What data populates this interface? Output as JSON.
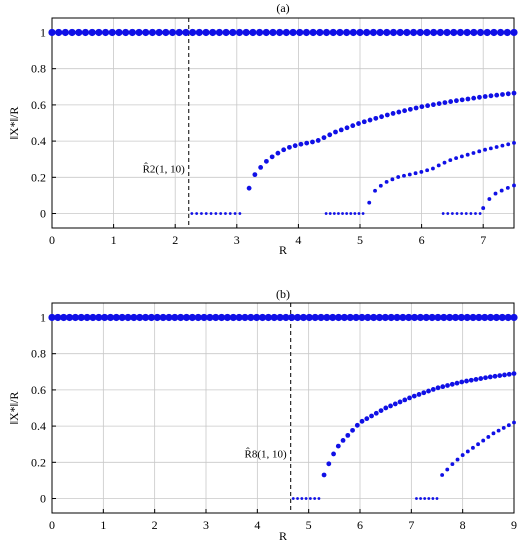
{
  "chart_data": [
    {
      "type": "scatter",
      "title": "(a)",
      "xlabel": "R",
      "ylabel": "‖X*‖/R",
      "xlim": [
        0,
        7.5
      ],
      "ylim": [
        -0.08,
        1.08
      ],
      "xticks": [
        0,
        1,
        2,
        3,
        4,
        5,
        6,
        7
      ],
      "yticks": [
        0,
        0.2,
        0.4,
        0.6,
        0.8,
        1
      ],
      "grid": true,
      "annotation": {
        "text": "R̂2(1, 10)",
        "x": 2.22
      },
      "series": [
        {
          "segments": [
            {
              "x_start": 0,
              "x_end": 7.5,
              "count": 70,
              "y": 1
            }
          ]
        },
        {
          "segments": [
            {
              "x_start": 2.27,
              "x_end": 3.05,
              "count": 11,
              "y": 0
            },
            {
              "x_start": 3.2,
              "x_end": 7.5,
              "points": [
                [
                  3.2,
                  0.14
                ],
                [
                  3.3,
                  0.22
                ],
                [
                  3.45,
                  0.28
                ],
                [
                  3.6,
                  0.32
                ],
                [
                  3.8,
                  0.36
                ],
                [
                  4.0,
                  0.38
                ],
                [
                  4.3,
                  0.4
                ],
                [
                  4.6,
                  0.45
                ],
                [
                  5.0,
                  0.5
                ],
                [
                  5.5,
                  0.55
                ],
                [
                  6.0,
                  0.59
                ],
                [
                  6.5,
                  0.62
                ],
                [
                  7.0,
                  0.645
                ],
                [
                  7.5,
                  0.665
                ]
              ]
            }
          ]
        },
        {
          "segments": [
            {
              "x_start": 4.45,
              "x_end": 5.05,
              "count": 10,
              "y": 0
            },
            {
              "x_start": 5.15,
              "x_end": 7.5,
              "points": [
                [
                  5.15,
                  0.06
                ],
                [
                  5.25,
                  0.13
                ],
                [
                  5.4,
                  0.17
                ],
                [
                  5.6,
                  0.2
                ],
                [
                  6.0,
                  0.23
                ],
                [
                  6.2,
                  0.25
                ],
                [
                  6.3,
                  0.27
                ],
                [
                  6.5,
                  0.3
                ],
                [
                  7.0,
                  0.35
                ],
                [
                  7.5,
                  0.39
                ]
              ]
            }
          ]
        },
        {
          "segments": [
            {
              "x_start": 6.35,
              "x_end": 6.95,
              "count": 9,
              "y": 0
            },
            {
              "x_start": 7.0,
              "x_end": 7.5,
              "points": [
                [
                  7.0,
                  0.03
                ],
                [
                  7.1,
                  0.08
                ],
                [
                  7.2,
                  0.11
                ],
                [
                  7.35,
                  0.135
                ],
                [
                  7.5,
                  0.155
                ]
              ]
            }
          ]
        }
      ]
    },
    {
      "type": "scatter",
      "title": "(b)",
      "xlabel": "R",
      "ylabel": "‖X*‖/R",
      "xlim": [
        0,
        9
      ],
      "ylim": [
        -0.08,
        1.08
      ],
      "xticks": [
        0,
        1,
        2,
        3,
        4,
        5,
        6,
        7,
        8,
        9
      ],
      "yticks": [
        0,
        0.2,
        0.4,
        0.6,
        0.8,
        1
      ],
      "grid": true,
      "annotation": {
        "text": "R̂8(1, 10)",
        "x": 4.65
      },
      "series": [
        {
          "segments": [
            {
              "x_start": 0,
              "x_end": 9,
              "count": 80,
              "y": 1
            }
          ]
        },
        {
          "segments": [
            {
              "x_start": 4.7,
              "x_end": 5.2,
              "count": 7,
              "y": 0
            },
            {
              "x_start": 5.3,
              "x_end": 9,
              "points": [
                [
                  5.3,
                  0.13
                ],
                [
                  5.45,
                  0.23
                ],
                [
                  5.6,
                  0.3
                ],
                [
                  5.8,
                  0.36
                ],
                [
                  6.0,
                  0.42
                ],
                [
                  6.5,
                  0.5
                ],
                [
                  7.0,
                  0.56
                ],
                [
                  7.5,
                  0.61
                ],
                [
                  8.0,
                  0.645
                ],
                [
                  8.5,
                  0.67
                ],
                [
                  9.0,
                  0.69
                ]
              ]
            }
          ]
        },
        {
          "segments": [
            {
              "x_start": 7.1,
              "x_end": 7.5,
              "count": 6,
              "y": 0
            },
            {
              "x_start": 7.6,
              "x_end": 9,
              "points": [
                [
                  7.6,
                  0.13
                ],
                [
                  7.8,
                  0.19
                ],
                [
                  8.0,
                  0.24
                ],
                [
                  8.3,
                  0.3
                ],
                [
                  8.6,
                  0.36
                ],
                [
                  9.0,
                  0.42
                ]
              ]
            }
          ]
        }
      ]
    }
  ]
}
